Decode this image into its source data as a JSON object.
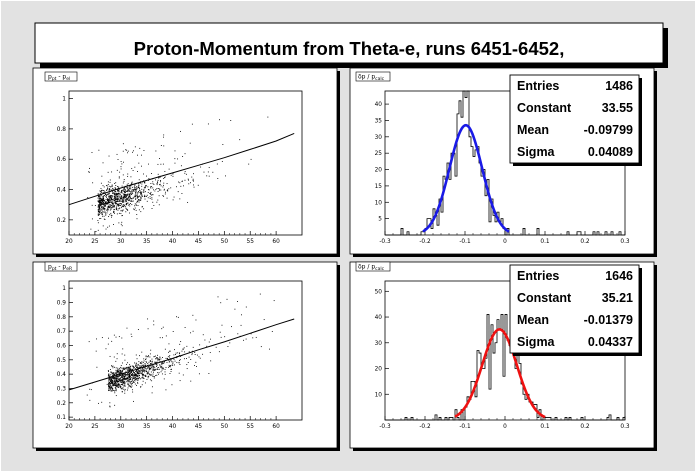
{
  "page": {
    "title": "Proton-Momentum from Theta-e, runs 6451-6452,"
  },
  "colors": {
    "canvas_bg": "#e2e2e2",
    "frame_bg": "#ffffff",
    "fit_blue": "#1a1ae6",
    "fit_red": "#ee1111"
  },
  "chart_data": [
    {
      "id": "scatter_top",
      "type": "scatter",
      "ylabel_main": "p",
      "ylabel_sub1": "pt",
      "ylabel_sep": " - p",
      "ylabel_sub2": "el",
      "xlim": [
        20,
        65
      ],
      "ylim": [
        0.1,
        1.05
      ],
      "xticks": [
        "20",
        "25",
        "30",
        "35",
        "40",
        "45",
        "50",
        "55",
        "60"
      ],
      "xtick_values": [
        20,
        25,
        30,
        35,
        40,
        45,
        50,
        55,
        60
      ],
      "yticks": [
        "0.2",
        "0.4",
        "0.6",
        "0.8",
        "1"
      ],
      "ytick_values": [
        0.2,
        0.4,
        0.6,
        0.8,
        1.0
      ],
      "curve": {
        "x": [
          20,
          25,
          30,
          35,
          40,
          45,
          50,
          55,
          60,
          63.5
        ],
        "y": [
          0.3,
          0.355,
          0.41,
          0.46,
          0.51,
          0.56,
          0.61,
          0.665,
          0.72,
          0.77
        ]
      },
      "cloud": {
        "x_center": 29,
        "x_spread": 5,
        "y_intercept": 0.06,
        "y_slope": 0.0097,
        "y_scatter": 0.045,
        "n": 900,
        "outliers": 160,
        "seed": 11
      }
    },
    {
      "id": "hist_top",
      "type": "histogram",
      "ylabel": "δp / p",
      "ylabel_sub": "calc",
      "xlim": [
        -0.3,
        0.3
      ],
      "ylim": [
        0,
        44
      ],
      "xticks": [
        "-0.3",
        "-0.2",
        "-0.1",
        "0",
        "0.1",
        "0.2",
        "0.3"
      ],
      "xtick_values": [
        -0.3,
        -0.2,
        -0.1,
        0,
        0.1,
        0.2,
        0.3
      ],
      "yticks": [
        "5",
        "10",
        "15",
        "20",
        "25",
        "30",
        "35",
        "40"
      ],
      "ytick_values": [
        5,
        10,
        15,
        20,
        25,
        30,
        35,
        40
      ],
      "bins": 120,
      "fit": {
        "amplitude": 33.55,
        "mean": -0.09799,
        "sigma": 0.04089,
        "x_from": -0.205,
        "x_to": 0.01,
        "color": "#1a1ae6"
      },
      "noise_seed": 23,
      "stats": [
        {
          "label": "Entries",
          "value": "1486"
        },
        {
          "label": "Constant",
          "value": "33.55"
        },
        {
          "label": "Mean",
          "value": "-0.09799"
        },
        {
          "label": "Sigma",
          "value": "0.04089"
        }
      ]
    },
    {
      "id": "scatter_bottom",
      "type": "scatter",
      "ylabel_main": "p",
      "ylabel_sub1": "pt",
      "ylabel_sep": " - p",
      "ylabel_sub2": "eR",
      "xlim": [
        20,
        65
      ],
      "ylim": [
        0.08,
        1.05
      ],
      "xticks": [
        "20",
        "25",
        "30",
        "35",
        "40",
        "45",
        "50",
        "55",
        "60"
      ],
      "xtick_values": [
        20,
        25,
        30,
        35,
        40,
        45,
        50,
        55,
        60
      ],
      "yticks": [
        "0.1",
        "0.2",
        "0.3",
        "0.4",
        "0.5",
        "0.6",
        "0.7",
        "0.8",
        "0.9",
        "1"
      ],
      "ytick_values": [
        0.1,
        0.2,
        0.3,
        0.4,
        0.5,
        0.6,
        0.7,
        0.8,
        0.9,
        1.0
      ],
      "curve": {
        "x": [
          20,
          25,
          30,
          35,
          40,
          45,
          50,
          55,
          60,
          63.5
        ],
        "y": [
          0.29,
          0.345,
          0.4,
          0.455,
          0.51,
          0.57,
          0.625,
          0.685,
          0.745,
          0.785
        ]
      },
      "cloud": {
        "x_center": 31,
        "x_spread": 5.5,
        "y_intercept": 0.0,
        "y_slope": 0.0125,
        "y_scatter": 0.04,
        "n": 1000,
        "outliers": 120,
        "seed": 47
      }
    },
    {
      "id": "hist_bottom",
      "type": "histogram",
      "ylabel": "δp / p",
      "ylabel_sub": "calc",
      "xlim": [
        -0.3,
        0.3
      ],
      "ylim": [
        0,
        54
      ],
      "xticks": [
        "-0.3",
        "-0.2",
        "-0.1",
        "0",
        "0.1",
        "0.2",
        "0.3"
      ],
      "xtick_values": [
        -0.3,
        -0.2,
        -0.1,
        0,
        0.1,
        0.2,
        0.3
      ],
      "yticks": [
        "10",
        "20",
        "30",
        "40",
        "50"
      ],
      "ytick_values": [
        10,
        20,
        30,
        40,
        50
      ],
      "bins": 120,
      "fit": {
        "amplitude": 35.21,
        "mean": -0.01379,
        "sigma": 0.04337,
        "x_from": -0.125,
        "x_to": 0.1,
        "color": "#ee1111"
      },
      "noise_seed": 71,
      "stats": [
        {
          "label": "Entries",
          "value": "1646"
        },
        {
          "label": "Constant",
          "value": "35.21"
        },
        {
          "label": "Mean",
          "value": "-0.01379"
        },
        {
          "label": "Sigma",
          "value": "0.04337"
        }
      ]
    }
  ]
}
